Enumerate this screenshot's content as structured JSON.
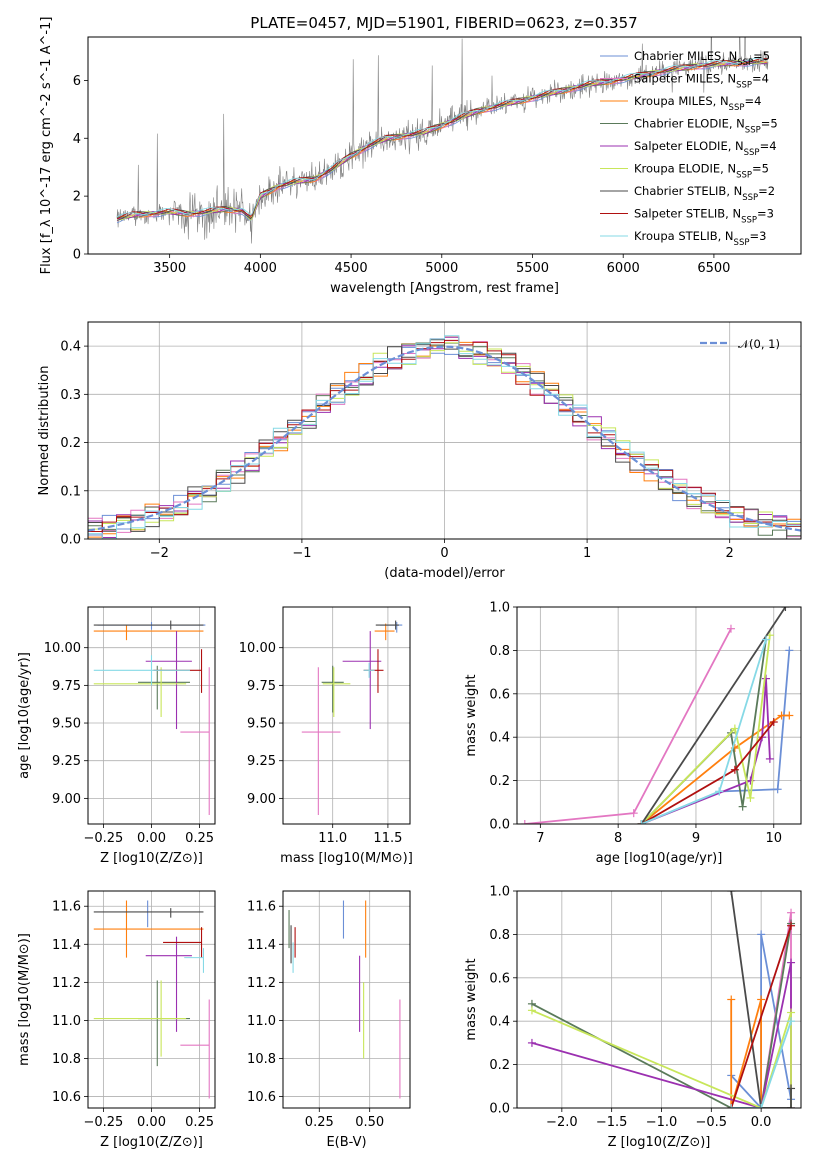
{
  "figure": {
    "title": "PLATE=0457, MJD=51901, FIBERID=0623, z=0.357"
  },
  "models": [
    {
      "name": "Chabrier MILES",
      "nssp": "5",
      "color": "#6b8fd6"
    },
    {
      "name": "Salpeter MILES",
      "nssp": "4",
      "color": "#e377c2"
    },
    {
      "name": "Kroupa MILES",
      "nssp": "4",
      "color": "#ff7f0e"
    },
    {
      "name": "Chabrier ELODIE",
      "nssp": "5",
      "color": "#5a7a5a"
    },
    {
      "name": "Salpeter ELODIE",
      "nssp": "4",
      "color": "#9b30b0"
    },
    {
      "name": "Kroupa ELODIE",
      "nssp": "5",
      "color": "#c8e65a"
    },
    {
      "name": "Chabrier STELIB",
      "nssp": "2",
      "color": "#4a4a4a"
    },
    {
      "name": "Salpeter STELIB",
      "nssp": "3",
      "color": "#b01010"
    },
    {
      "name": "Kroupa STELIB",
      "nssp": "3",
      "color": "#86d9e6"
    }
  ],
  "chart_data": [
    {
      "id": "spectrum",
      "type": "line",
      "xlabel": "wavelength [Angstrom, rest frame]",
      "ylabel": "Flux [f_λ 10^-17 erg cm^-2 s^-1 A^-1]",
      "xlim": [
        3050,
        6980
      ],
      "ylim": [
        0,
        7.5
      ],
      "xticks": [
        3500,
        4000,
        4500,
        5000,
        5500,
        6000,
        6500
      ],
      "yticks": [
        0,
        2,
        4,
        6
      ],
      "data_color": "#808080",
      "continuum_x": [
        3210,
        3300,
        3400,
        3500,
        3600,
        3700,
        3800,
        3900,
        3950,
        4000,
        4100,
        4200,
        4300,
        4400,
        4500,
        4600,
        4700,
        4800,
        4900,
        5000,
        5200,
        5400,
        5600,
        5800,
        6000,
        6200,
        6400,
        6600,
        6800
      ],
      "continuum_y": [
        1.2,
        1.35,
        1.4,
        1.45,
        1.4,
        1.45,
        1.55,
        1.5,
        1.2,
        2.0,
        2.35,
        2.5,
        2.6,
        2.95,
        3.4,
        3.75,
        4.0,
        4.1,
        4.2,
        4.45,
        4.95,
        5.25,
        5.55,
        5.85,
        6.05,
        6.3,
        6.5,
        6.6,
        6.65
      ],
      "legend_position": "upper right"
    },
    {
      "id": "residuals",
      "type": "histogram",
      "xlabel": "(data-model)/error",
      "ylabel": "Normed distribution",
      "xlim": [
        -2.5,
        2.5
      ],
      "ylim": [
        0,
        0.45
      ],
      "xticks": [
        -2,
        -1,
        0,
        1,
        2
      ],
      "yticks": [
        0.0,
        0.1,
        0.2,
        0.3,
        0.4
      ],
      "grid": true,
      "reference": {
        "name": "𝒩(0, 1)",
        "mean": 0,
        "sigma": 1,
        "color": "#6b8fd6"
      },
      "legend_position": "upper right"
    },
    {
      "id": "age-vs-Z",
      "type": "errorbar",
      "xlabel": "Z [log10(Z/Z⊙)]",
      "ylabel": "age [log10(age/yr)]",
      "xlim": [
        -0.33,
        0.33
      ],
      "ylim": [
        8.83,
        10.27
      ],
      "xticks": [
        -0.25,
        0.0,
        0.25
      ],
      "yticks": [
        9.0,
        9.25,
        9.5,
        9.75,
        10.0
      ],
      "grid": true,
      "points": [
        {
          "x": 0.0,
          "xerr": [
            0.28,
            0.28
          ],
          "y": 10.15,
          "yerr": [
            0.03,
            0.02
          ]
        },
        {
          "x": 0.3,
          "xerr": [
            0.15,
            0.0
          ],
          "y": 9.44,
          "yerr": [
            0.55,
            0.43
          ]
        },
        {
          "x": -0.13,
          "xerr": [
            0.17,
            0.4
          ],
          "y": 10.11,
          "yerr": [
            0.06,
            0.04
          ]
        },
        {
          "x": 0.03,
          "xerr": [
            0.1,
            0.17
          ],
          "y": 9.77,
          "yerr": [
            0.18,
            0.11
          ]
        },
        {
          "x": 0.13,
          "xerr": [
            0.16,
            0.08
          ],
          "y": 9.91,
          "yerr": [
            0.45,
            0.2
          ]
        },
        {
          "x": 0.05,
          "xerr": [
            0.35,
            0.13
          ],
          "y": 9.76,
          "yerr": [
            0.22,
            0.11
          ]
        },
        {
          "x": 0.1,
          "xerr": [
            0.4,
            0.17
          ],
          "y": 10.15,
          "yerr": [
            0.03,
            0.03
          ]
        },
        {
          "x": 0.26,
          "xerr": [
            0.25,
            0.0
          ],
          "y": 9.85,
          "yerr": [
            0.15,
            0.14
          ]
        },
        {
          "x": 0.0,
          "xerr": [
            0.3,
            0.2
          ],
          "y": 9.85,
          "yerr": [
            0.1,
            0.1
          ]
        }
      ]
    },
    {
      "id": "age-vs-mass",
      "type": "errorbar",
      "xlabel": "mass [log10(M/M⊙)]",
      "ylabel": "",
      "xlim": [
        10.55,
        11.7
      ],
      "ylim": [
        8.83,
        10.27
      ],
      "xticks": [
        11.0,
        11.5
      ],
      "yticks": [
        9.0,
        9.25,
        9.5,
        9.75,
        10.0
      ],
      "grid": true,
      "points": [
        {
          "x": 11.58,
          "xerr": [
            0.15,
            0.05
          ],
          "y": 10.15,
          "yerr": [
            0.05,
            0.02
          ]
        },
        {
          "x": 10.87,
          "xerr": [
            0.15,
            0.2
          ],
          "y": 9.44,
          "yerr": [
            0.55,
            0.43
          ]
        },
        {
          "x": 11.48,
          "xerr": [
            0.1,
            0.08
          ],
          "y": 10.11,
          "yerr": [
            0.06,
            0.05
          ]
        },
        {
          "x": 11.0,
          "xerr": [
            0.1,
            0.1
          ],
          "y": 9.77,
          "yerr": [
            0.2,
            0.11
          ]
        },
        {
          "x": 11.34,
          "xerr": [
            0.25,
            0.1
          ],
          "y": 9.91,
          "yerr": [
            0.45,
            0.2
          ]
        },
        {
          "x": 11.01,
          "xerr": [
            0.1,
            0.15
          ],
          "y": 9.76,
          "yerr": [
            0.22,
            0.11
          ]
        },
        {
          "x": 11.57,
          "xerr": [
            0.18,
            0.03
          ],
          "y": 10.15,
          "yerr": [
            0.03,
            0.03
          ]
        },
        {
          "x": 11.41,
          "xerr": [
            0.13,
            0.05
          ],
          "y": 9.85,
          "yerr": [
            0.15,
            0.14
          ]
        },
        {
          "x": 11.33,
          "xerr": [
            0.05,
            0.05
          ],
          "y": 9.85,
          "yerr": [
            0.05,
            0.05
          ]
        }
      ]
    },
    {
      "id": "massweight-vs-age",
      "type": "line",
      "xlabel": "age [log10(age/yr)]",
      "ylabel": "mass weight",
      "xlim": [
        6.7,
        10.35
      ],
      "ylim": [
        0.0,
        1.0
      ],
      "xticks": [
        7,
        8,
        9,
        10
      ],
      "yticks": [
        0.0,
        0.2,
        0.4,
        0.6,
        0.8,
        1.0
      ],
      "grid": true,
      "series": [
        {
          "x": [
            8.3,
            9.3,
            10.05,
            10.2
          ],
          "y": [
            0.0,
            0.15,
            0.16,
            0.8
          ]
        },
        {
          "x": [
            6.8,
            8.2,
            9.45
          ],
          "y": [
            0.0,
            0.05,
            0.9
          ]
        },
        {
          "x": [
            8.3,
            9.5,
            10.1,
            10.2
          ],
          "y": [
            0.0,
            0.35,
            0.5,
            0.5
          ]
        },
        {
          "x": [
            8.3,
            9.45,
            9.6,
            9.9
          ],
          "y": [
            0.0,
            0.42,
            0.08,
            0.85
          ]
        },
        {
          "x": [
            8.3,
            9.7,
            9.85,
            9.9,
            9.95
          ],
          "y": [
            0.0,
            0.2,
            0.4,
            0.67,
            0.3
          ]
        },
        {
          "x": [
            8.3,
            9.5,
            9.7,
            9.95
          ],
          "y": [
            0.0,
            0.44,
            0.12,
            0.87
          ]
        },
        {
          "x": [
            8.3,
            10.15
          ],
          "y": [
            0.0,
            1.0
          ]
        },
        {
          "x": [
            8.3,
            9.5,
            10.0
          ],
          "y": [
            0.0,
            0.25,
            0.47
          ]
        },
        {
          "x": [
            8.3,
            9.3,
            9.9
          ],
          "y": [
            0.0,
            0.15,
            0.85
          ]
        }
      ]
    },
    {
      "id": "mass-vs-Z",
      "type": "errorbar",
      "xlabel": "Z [log10(Z/Z⊙)]",
      "ylabel": "mass [log10(M/M⊙)]",
      "xlim": [
        -0.33,
        0.33
      ],
      "ylim": [
        10.54,
        11.68
      ],
      "xticks": [
        -0.25,
        0.0,
        0.25
      ],
      "yticks": [
        10.6,
        10.8,
        11.0,
        11.2,
        11.4,
        11.6
      ],
      "grid": true,
      "points": [
        {
          "x": -0.02,
          "xerr": [
            0.0,
            0.0
          ],
          "y": 11.55,
          "yerr": [
            0.06,
            0.08
          ]
        },
        {
          "x": 0.3,
          "xerr": [
            0.15,
            0.0
          ],
          "y": 10.87,
          "yerr": [
            0.28,
            0.24
          ]
        },
        {
          "x": -0.13,
          "xerr": [
            0.17,
            0.4
          ],
          "y": 11.48,
          "yerr": [
            0.15,
            0.15
          ]
        },
        {
          "x": 0.03,
          "xerr": [
            0.1,
            0.17
          ],
          "y": 11.01,
          "yerr": [
            0.25,
            0.2
          ]
        },
        {
          "x": 0.13,
          "xerr": [
            0.16,
            0.08
          ],
          "y": 11.34,
          "yerr": [
            0.4,
            0.1
          ]
        },
        {
          "x": 0.05,
          "xerr": [
            0.35,
            0.13
          ],
          "y": 11.01,
          "yerr": [
            0.2,
            0.2
          ]
        },
        {
          "x": 0.1,
          "xerr": [
            0.4,
            0.17
          ],
          "y": 11.57,
          "yerr": [
            0.03,
            0.02
          ]
        },
        {
          "x": 0.26,
          "xerr": [
            0.2,
            0.0
          ],
          "y": 11.41,
          "yerr": [
            0.08,
            0.08
          ]
        },
        {
          "x": 0.27,
          "xerr": [
            0.1,
            0.0
          ],
          "y": 11.33,
          "yerr": [
            0.08,
            0.05
          ]
        }
      ]
    },
    {
      "id": "mass-vs-ebv",
      "type": "errorbar",
      "xlabel": "E(B-V)",
      "ylabel": "",
      "xlim": [
        0.07,
        0.7
      ],
      "ylim": [
        10.54,
        11.68
      ],
      "xticks": [
        0.25,
        0.5
      ],
      "yticks": [
        10.6,
        10.8,
        11.0,
        11.2,
        11.4,
        11.6
      ],
      "grid": true,
      "points": [
        {
          "x": 0.37,
          "xerr": [
            0,
            0
          ],
          "y": 11.53,
          "yerr": [
            0.1,
            0.1
          ]
        },
        {
          "x": 0.65,
          "xerr": [
            0,
            0
          ],
          "y": 10.87,
          "yerr": [
            0.28,
            0.24
          ]
        },
        {
          "x": 0.48,
          "xerr": [
            0,
            0
          ],
          "y": 11.48,
          "yerr": [
            0.15,
            0.15
          ]
        },
        {
          "x": 0.1,
          "xerr": [
            0,
            0
          ],
          "y": 11.48,
          "yerr": [
            0.1,
            0.1
          ]
        },
        {
          "x": 0.45,
          "xerr": [
            0,
            0
          ],
          "y": 11.14,
          "yerr": [
            0.2,
            0.2
          ]
        },
        {
          "x": 0.47,
          "xerr": [
            0,
            0
          ],
          "y": 11.0,
          "yerr": [
            0.2,
            0.2
          ]
        },
        {
          "x": 0.11,
          "xerr": [
            0,
            0
          ],
          "y": 11.4,
          "yerr": [
            0.1,
            0.1
          ]
        },
        {
          "x": 0.13,
          "xerr": [
            0,
            0
          ],
          "y": 11.41,
          "yerr": [
            0.08,
            0.08
          ]
        },
        {
          "x": 0.12,
          "xerr": [
            0,
            0
          ],
          "y": 11.33,
          "yerr": [
            0.08,
            0.08
          ]
        }
      ]
    },
    {
      "id": "massweight-vs-Z",
      "type": "line",
      "xlabel": "Z [log10(Z/Z⊙)]",
      "ylabel": "mass weight",
      "xlim": [
        -2.45,
        0.4
      ],
      "ylim": [
        0.0,
        1.0
      ],
      "xticks": [
        -2.0,
        -1.5,
        -1.0,
        -0.5,
        0.0
      ],
      "yticks": [
        0.0,
        0.2,
        0.4,
        0.6,
        0.8,
        1.0
      ],
      "grid": true,
      "series": [
        {
          "x": [
            -0.3,
            0.0,
            0.0,
            0.3,
            0.3
          ],
          "y": [
            0.15,
            0.0,
            0.8,
            0.04,
            0.0
          ]
        },
        {
          "x": [
            0.0,
            0.3,
            0.3
          ],
          "y": [
            0.0,
            0.9,
            0.0
          ]
        },
        {
          "x": [
            -0.3,
            -0.3,
            0.0,
            0.0
          ],
          "y": [
            0.5,
            0.0,
            0.5,
            0.0
          ]
        },
        {
          "x": [
            -2.3,
            -0.3,
            0.0,
            0.3
          ],
          "y": [
            0.48,
            0.0,
            0.0,
            0.85
          ]
        },
        {
          "x": [
            -2.3,
            0.0,
            0.3,
            0.3
          ],
          "y": [
            0.3,
            0.0,
            0.67,
            0.0
          ]
        },
        {
          "x": [
            -2.3,
            0.0,
            0.3,
            0.3
          ],
          "y": [
            0.45,
            0.0,
            0.44,
            0.0
          ]
        },
        {
          "x": [
            -0.3,
            0.0,
            0.3,
            0.3
          ],
          "y": [
            1.0,
            0.0,
            0.0,
            0.09
          ]
        },
        {
          "x": [
            -0.3,
            0.3
          ],
          "y": [
            0.0,
            0.84
          ]
        },
        {
          "x": [
            -0.3,
            0.0,
            0.3
          ],
          "y": [
            0.0,
            0.0,
            0.4
          ]
        }
      ]
    }
  ]
}
